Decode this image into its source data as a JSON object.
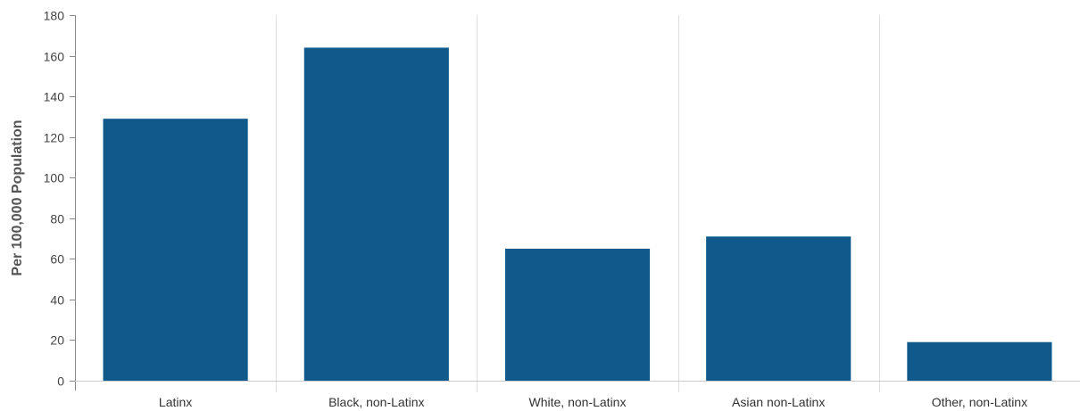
{
  "chart_data": {
    "type": "bar",
    "categories": [
      "Latinx",
      "Black, non-Latinx",
      "White, non-Latinx",
      "Asian non-Latinx",
      "Other, non-Latinx"
    ],
    "values": [
      129,
      164,
      65,
      71,
      19
    ],
    "ylabel": "Per 100,000 Population",
    "ylim": [
      0,
      180
    ],
    "yticks": [
      0,
      20,
      40,
      60,
      80,
      100,
      120,
      140,
      160,
      180
    ],
    "grid": "vertical category separators",
    "bar_color": "#105a8b"
  }
}
